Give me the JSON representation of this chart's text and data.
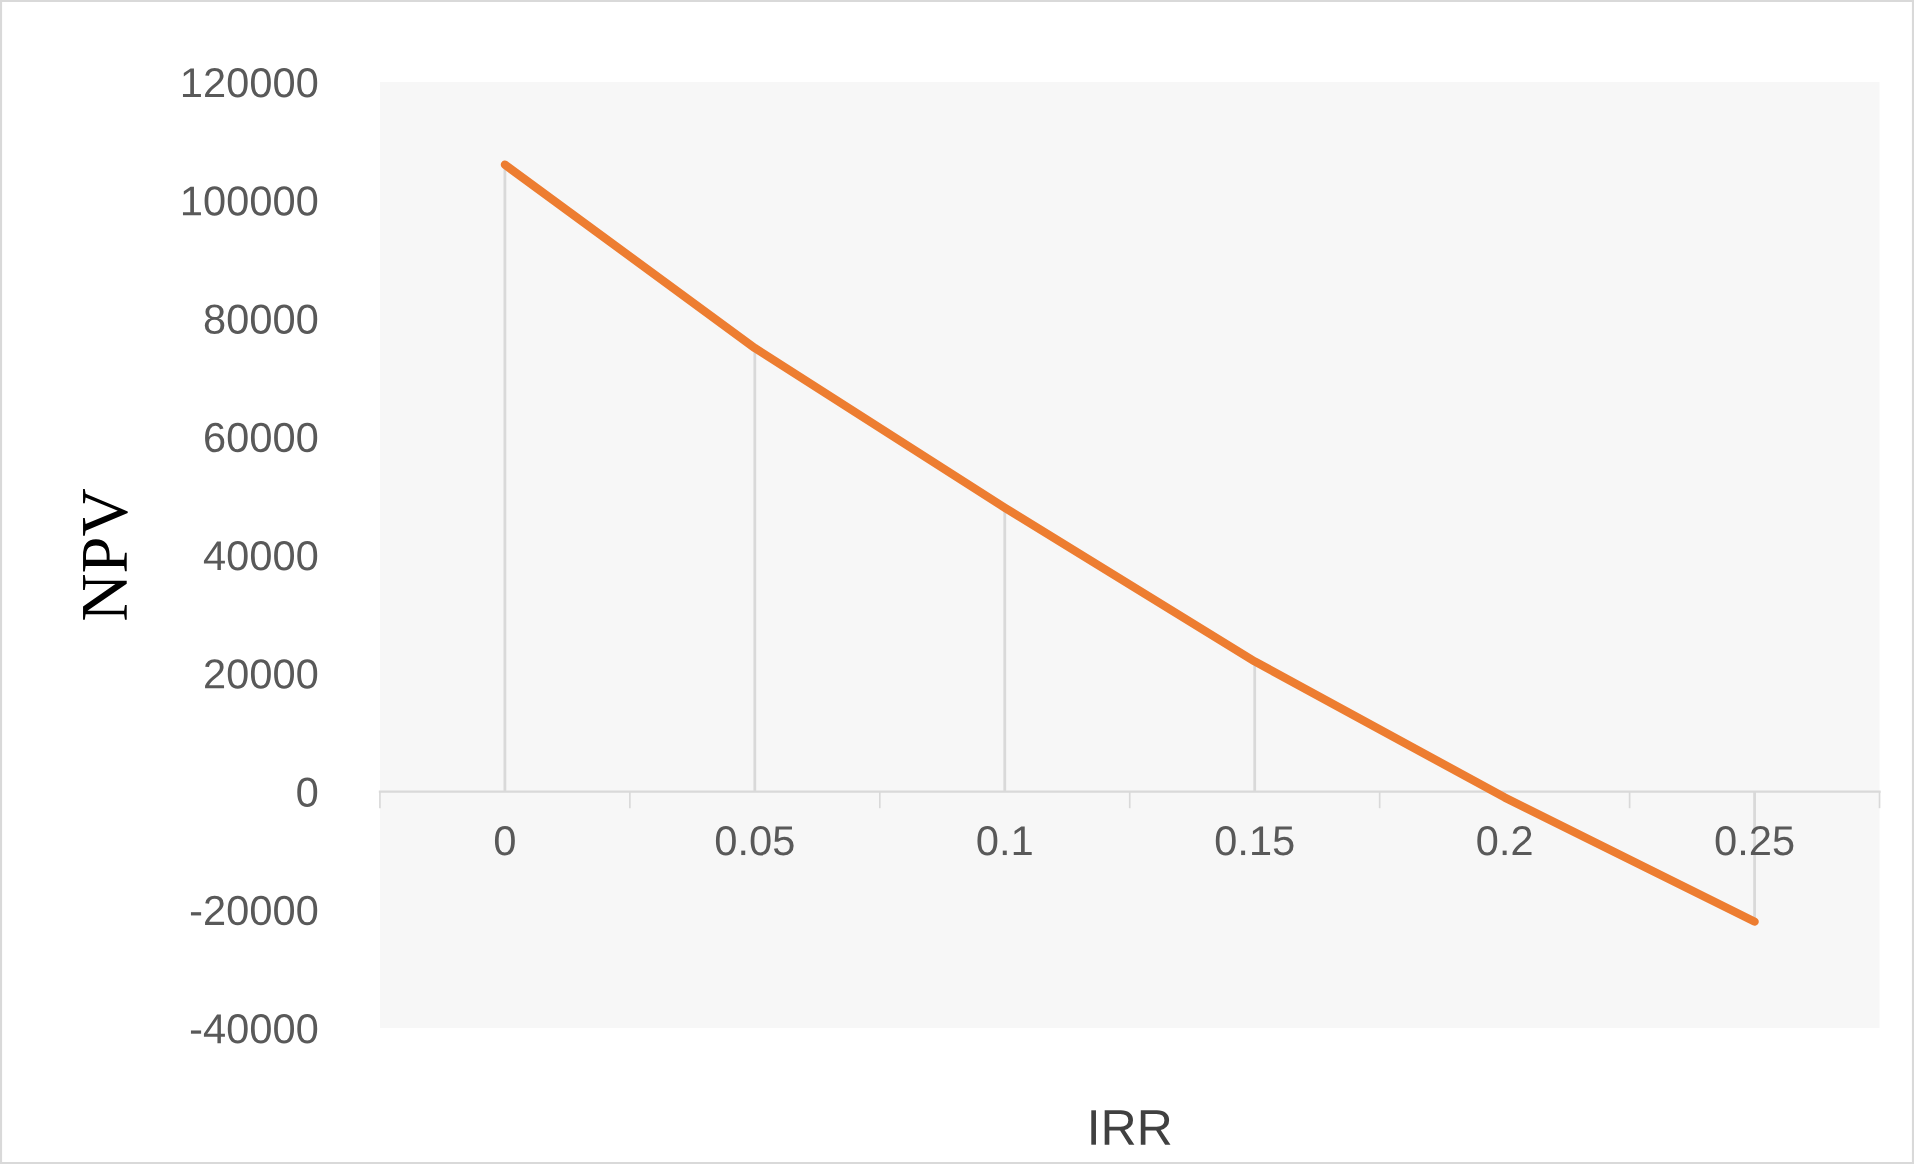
{
  "chart_data": {
    "type": "line",
    "xlabel": "IRR",
    "ylabel": "NPV",
    "categories": [
      "0",
      "0.05",
      "0.1",
      "0.15",
      "0.2",
      "0.25"
    ],
    "series": [
      {
        "color": "#ed7d31",
        "values": [
          106000,
          75000,
          48000,
          22000,
          -1000,
          -22000
        ],
        "errors": [
          [
            0,
            106000
          ],
          [
            0,
            75000
          ],
          [
            0,
            48000
          ],
          [
            0,
            22000
          ],
          null,
          [
            -22000,
            0
          ]
        ]
      }
    ],
    "ylim": [
      -40000,
      120000
    ],
    "yticks": [
      -40000,
      -20000,
      0,
      20000,
      40000,
      60000,
      80000,
      100000,
      120000
    ],
    "grid": false,
    "legend": false,
    "marker": "none",
    "line_style": "solid"
  }
}
